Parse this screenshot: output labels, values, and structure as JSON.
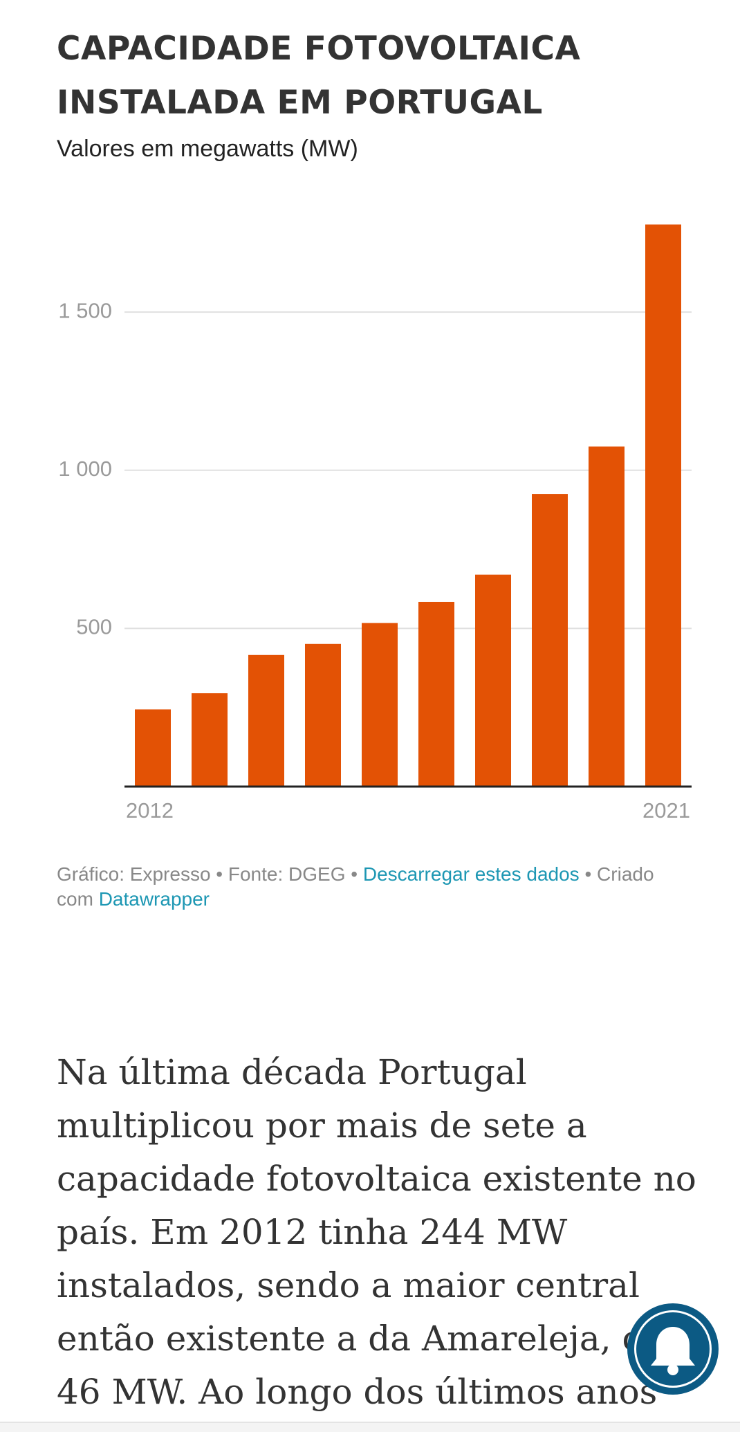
{
  "chart_data": {
    "type": "bar",
    "title_lines": [
      "CAPACIDADE FOTOVOLTAICA",
      "INSTALADA EM PORTUGAL"
    ],
    "subtitle": "Valores em megawatts (MW)",
    "categories": [
      "2012",
      null,
      null,
      null,
      null,
      null,
      null,
      null,
      null,
      "2021"
    ],
    "values": [
      244,
      295,
      416,
      451,
      517,
      584,
      670,
      925,
      1075,
      1777
    ],
    "color": "#e35205",
    "ylim": [
      0,
      1800
    ],
    "yticks": [
      500,
      {
        "value": 1000,
        "label": "1 000"
      },
      {
        "value": 1500,
        "label": "1 500"
      }
    ],
    "grid": true
  },
  "footer": {
    "text_1": "Gráfico: Expresso • Fonte: DGEG • ",
    "link_1": "Descarregar estes dados",
    "text_2": " • Criado com ",
    "link_2": "Datawrapper"
  },
  "article": {
    "lines": [
      "Na última década Portugal",
      "multiplicou por mais de sete a",
      "capacidade fotovoltaica existente no",
      "país. Em 2012 tinha 244 MW",
      "instalados, sendo a maior central",
      "então existente a da Amareleja, com",
      "46 MW. Ao longo dos últimos anos"
    ]
  }
}
